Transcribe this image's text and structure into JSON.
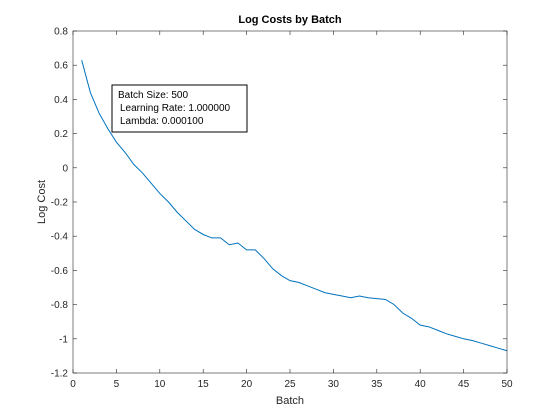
{
  "chart_data": {
    "type": "line",
    "title": "Log Costs by Batch",
    "xlabel": "Batch",
    "ylabel": "Log Cost",
    "xlim": [
      0,
      50
    ],
    "ylim": [
      -1.2,
      0.8
    ],
    "grid": false,
    "x_ticks": [
      0,
      5,
      10,
      15,
      20,
      25,
      30,
      35,
      40,
      45,
      50
    ],
    "x_tick_labels": [
      "0",
      "5",
      "10",
      "15",
      "20",
      "25",
      "30",
      "35",
      "40",
      "45",
      "50"
    ],
    "y_ticks": [
      0.8,
      0.6,
      0.4,
      0.2,
      0,
      -0.2,
      -0.4,
      -0.6,
      -0.8,
      -1,
      -1.2
    ],
    "y_tick_labels": [
      "0.8",
      "0.6",
      "0.4",
      "0.2",
      "0",
      "-0.2",
      "-0.4",
      "-0.6",
      "-0.8",
      "-1",
      "-1.2"
    ],
    "annotation": {
      "lines": [
        "Batch Size: 500",
        "Learning Rate: 1.000000",
        "Lambda: 0.000100"
      ]
    },
    "series": [
      {
        "color": "#0072BD",
        "x": [
          1,
          2,
          3,
          4,
          5,
          6,
          7,
          8,
          9,
          10,
          11,
          12,
          13,
          14,
          15,
          16,
          17,
          18,
          19,
          20,
          21,
          22,
          23,
          24,
          25,
          26,
          27,
          28,
          29,
          30,
          31,
          32,
          33,
          34,
          35,
          36,
          37,
          38,
          39,
          40,
          41,
          42,
          43,
          44,
          45,
          46,
          47,
          48,
          49,
          50
        ],
        "y": [
          0.63,
          0.44,
          0.32,
          0.23,
          0.15,
          0.09,
          0.02,
          -0.03,
          -0.09,
          -0.15,
          -0.2,
          -0.26,
          -0.31,
          -0.36,
          -0.39,
          -0.41,
          -0.41,
          -0.45,
          -0.44,
          -0.48,
          -0.48,
          -0.53,
          -0.59,
          -0.63,
          -0.66,
          -0.67,
          -0.69,
          -0.71,
          -0.73,
          -0.74,
          -0.75,
          -0.76,
          -0.75,
          -0.76,
          -0.765,
          -0.77,
          -0.8,
          -0.85,
          -0.88,
          -0.92,
          -0.93,
          -0.95,
          -0.97,
          -0.985,
          -1.0,
          -1.01,
          -1.025,
          -1.04,
          -1.055,
          -1.07
        ]
      }
    ]
  }
}
